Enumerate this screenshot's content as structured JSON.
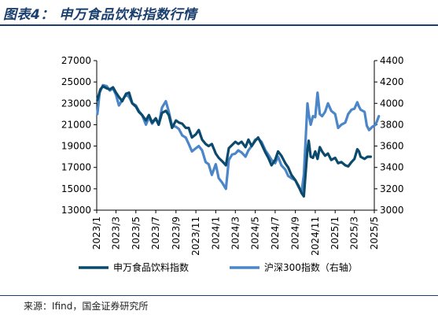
{
  "header": {
    "title": "图表4：  申万食品饮料指数行情"
  },
  "source": "来源：Ifind，国金证券研究所",
  "colors": {
    "primary": "#1a3f6e",
    "series1": "#0b4a6c",
    "series2": "#4a86c8",
    "axis": "#000000"
  },
  "chart_data": {
    "type": "line",
    "title": "",
    "xlabel": "",
    "ylabel": "",
    "x_start": "2023-01",
    "x_end": "2025-05",
    "x_tick_labels": [
      "2023/1",
      "2023/3",
      "2023/5",
      "2023/7",
      "2023/9",
      "2023/11",
      "2024/1",
      "2024/3",
      "2024/5",
      "2024/7",
      "2024/9",
      "2024/11",
      "2025/1",
      "2025/3",
      "2025/5"
    ],
    "ylim_left": [
      13000,
      27000
    ],
    "yticks_left": [
      13000,
      15000,
      17000,
      19000,
      21000,
      23000,
      25000,
      27000
    ],
    "ylim_right": [
      3000,
      4400
    ],
    "yticks_right": [
      3000,
      3200,
      3400,
      3600,
      3800,
      4000,
      4200,
      4400
    ],
    "legend_position": "bottom",
    "series": [
      {
        "name": "申万食品饮料指数",
        "axis": "left",
        "points": [
          [
            "2023-01-03",
            23300
          ],
          [
            "2023-01-12",
            24300
          ],
          [
            "2023-01-20",
            24600
          ],
          [
            "2023-02-01",
            24400
          ],
          [
            "2023-02-10",
            24300
          ],
          [
            "2023-02-20",
            24500
          ],
          [
            "2023-03-01",
            24000
          ],
          [
            "2023-03-10",
            23600
          ],
          [
            "2023-03-20",
            23200
          ],
          [
            "2023-04-01",
            23900
          ],
          [
            "2023-04-10",
            24000
          ],
          [
            "2023-04-20",
            23000
          ],
          [
            "2023-05-01",
            22700
          ],
          [
            "2023-05-10",
            22200
          ],
          [
            "2023-05-20",
            21900
          ],
          [
            "2023-06-01",
            21400
          ],
          [
            "2023-06-10",
            21900
          ],
          [
            "2023-06-20",
            21200
          ],
          [
            "2023-07-01",
            21600
          ],
          [
            "2023-07-10",
            21000
          ],
          [
            "2023-07-20",
            22100
          ],
          [
            "2023-08-01",
            22300
          ],
          [
            "2023-08-10",
            21900
          ],
          [
            "2023-08-20",
            20700
          ],
          [
            "2023-09-01",
            21400
          ],
          [
            "2023-09-10",
            21200
          ],
          [
            "2023-09-20",
            21100
          ],
          [
            "2023-10-01",
            20700
          ],
          [
            "2023-10-10",
            20700
          ],
          [
            "2023-10-20",
            19800
          ],
          [
            "2023-11-01",
            20100
          ],
          [
            "2023-11-10",
            20500
          ],
          [
            "2023-11-20",
            19600
          ],
          [
            "2023-12-01",
            19200
          ],
          [
            "2023-12-10",
            19000
          ],
          [
            "2023-12-20",
            19200
          ],
          [
            "2024-01-01",
            18300
          ],
          [
            "2024-01-10",
            17900
          ],
          [
            "2024-01-20",
            17600
          ],
          [
            "2024-02-01",
            17200
          ],
          [
            "2024-02-10",
            18800
          ],
          [
            "2024-02-20",
            19100
          ],
          [
            "2024-03-01",
            19400
          ],
          [
            "2024-03-10",
            19200
          ],
          [
            "2024-03-20",
            19400
          ],
          [
            "2024-04-01",
            18900
          ],
          [
            "2024-04-10",
            19600
          ],
          [
            "2024-04-20",
            19000
          ],
          [
            "2024-05-01",
            19500
          ],
          [
            "2024-05-10",
            19800
          ],
          [
            "2024-05-20",
            19200
          ],
          [
            "2024-06-01",
            18400
          ],
          [
            "2024-06-10",
            17900
          ],
          [
            "2024-06-20",
            17200
          ],
          [
            "2024-07-01",
            17700
          ],
          [
            "2024-07-10",
            18500
          ],
          [
            "2024-07-20",
            18100
          ],
          [
            "2024-08-01",
            17400
          ],
          [
            "2024-08-10",
            17000
          ],
          [
            "2024-08-20",
            16300
          ],
          [
            "2024-09-01",
            15800
          ],
          [
            "2024-09-10",
            15300
          ],
          [
            "2024-09-20",
            14600
          ],
          [
            "2024-09-27",
            14300
          ],
          [
            "2024-10-08",
            18700
          ],
          [
            "2024-10-12",
            19500
          ],
          [
            "2024-10-18",
            18000
          ],
          [
            "2024-10-25",
            17900
          ],
          [
            "2024-11-01",
            18500
          ],
          [
            "2024-11-08",
            17800
          ],
          [
            "2024-11-15",
            18900
          ],
          [
            "2024-11-22",
            18500
          ],
          [
            "2024-12-01",
            18100
          ],
          [
            "2024-12-10",
            18300
          ],
          [
            "2024-12-20",
            17700
          ],
          [
            "2025-01-01",
            17900
          ],
          [
            "2025-01-10",
            17400
          ],
          [
            "2025-01-20",
            17500
          ],
          [
            "2025-02-01",
            17200
          ],
          [
            "2025-02-10",
            17100
          ],
          [
            "2025-02-20",
            17500
          ],
          [
            "2025-03-01",
            17800
          ],
          [
            "2025-03-10",
            18700
          ],
          [
            "2025-03-15",
            18500
          ],
          [
            "2025-03-20",
            18000
          ],
          [
            "2025-04-01",
            17800
          ],
          [
            "2025-04-10",
            18000
          ],
          [
            "2025-04-20",
            18000
          ]
        ]
      },
      {
        "name": "沪深300指数（右轴）",
        "axis": "right",
        "points": [
          [
            "2023-01-03",
            3900
          ],
          [
            "2023-01-10",
            4100
          ],
          [
            "2023-01-20",
            4170
          ],
          [
            "2023-02-01",
            4160
          ],
          [
            "2023-02-10",
            4120
          ],
          [
            "2023-02-20",
            4140
          ],
          [
            "2023-03-01",
            4080
          ],
          [
            "2023-03-10",
            3980
          ],
          [
            "2023-03-20",
            4030
          ],
          [
            "2023-04-01",
            4080
          ],
          [
            "2023-04-10",
            4060
          ],
          [
            "2023-04-20",
            4000
          ],
          [
            "2023-05-01",
            3980
          ],
          [
            "2023-05-10",
            3930
          ],
          [
            "2023-05-20",
            3890
          ],
          [
            "2023-06-01",
            3800
          ],
          [
            "2023-06-10",
            3870
          ],
          [
            "2023-06-20",
            3810
          ],
          [
            "2023-07-01",
            3860
          ],
          [
            "2023-07-10",
            3800
          ],
          [
            "2023-07-20",
            3960
          ],
          [
            "2023-08-01",
            4020
          ],
          [
            "2023-08-10",
            3920
          ],
          [
            "2023-08-20",
            3790
          ],
          [
            "2023-09-01",
            3780
          ],
          [
            "2023-09-10",
            3760
          ],
          [
            "2023-09-20",
            3700
          ],
          [
            "2023-10-01",
            3680
          ],
          [
            "2023-10-10",
            3620
          ],
          [
            "2023-10-20",
            3550
          ],
          [
            "2023-11-01",
            3580
          ],
          [
            "2023-11-10",
            3600
          ],
          [
            "2023-11-20",
            3560
          ],
          [
            "2023-12-01",
            3450
          ],
          [
            "2023-12-10",
            3430
          ],
          [
            "2023-12-20",
            3330
          ],
          [
            "2024-01-01",
            3430
          ],
          [
            "2024-01-10",
            3300
          ],
          [
            "2024-01-20",
            3260
          ],
          [
            "2024-02-01",
            3200
          ],
          [
            "2024-02-10",
            3470
          ],
          [
            "2024-02-20",
            3520
          ],
          [
            "2024-03-01",
            3530
          ],
          [
            "2024-03-10",
            3560
          ],
          [
            "2024-03-20",
            3540
          ],
          [
            "2024-04-01",
            3500
          ],
          [
            "2024-04-10",
            3560
          ],
          [
            "2024-04-20",
            3600
          ],
          [
            "2024-05-01",
            3660
          ],
          [
            "2024-05-10",
            3670
          ],
          [
            "2024-05-20",
            3640
          ],
          [
            "2024-06-01",
            3560
          ],
          [
            "2024-06-10",
            3520
          ],
          [
            "2024-06-20",
            3470
          ],
          [
            "2024-07-01",
            3440
          ],
          [
            "2024-07-10",
            3500
          ],
          [
            "2024-07-20",
            3420
          ],
          [
            "2024-08-01",
            3380
          ],
          [
            "2024-08-10",
            3320
          ],
          [
            "2024-08-20",
            3300
          ],
          [
            "2024-09-01",
            3280
          ],
          [
            "2024-09-10",
            3220
          ],
          [
            "2024-09-20",
            3170
          ],
          [
            "2024-09-27",
            3330
          ],
          [
            "2024-10-08",
            4000
          ],
          [
            "2024-10-12",
            3900
          ],
          [
            "2024-10-18",
            3800
          ],
          [
            "2024-10-25",
            3880
          ],
          [
            "2024-11-01",
            3870
          ],
          [
            "2024-11-08",
            4100
          ],
          [
            "2024-11-15",
            3900
          ],
          [
            "2024-11-22",
            3880
          ],
          [
            "2024-12-01",
            3920
          ],
          [
            "2024-12-10",
            4000
          ],
          [
            "2024-12-20",
            3930
          ],
          [
            "2025-01-01",
            3900
          ],
          [
            "2025-01-10",
            3770
          ],
          [
            "2025-01-20",
            3800
          ],
          [
            "2025-02-01",
            3820
          ],
          [
            "2025-02-10",
            3900
          ],
          [
            "2025-02-20",
            3940
          ],
          [
            "2025-03-01",
            3950
          ],
          [
            "2025-03-10",
            4010
          ],
          [
            "2025-03-15",
            3970
          ],
          [
            "2025-03-20",
            3940
          ],
          [
            "2025-04-01",
            3920
          ],
          [
            "2025-04-08",
            3790
          ],
          [
            "2025-04-15",
            3750
          ],
          [
            "2025-04-25",
            3780
          ],
          [
            "2025-05-05",
            3800
          ],
          [
            "2025-05-15",
            3880
          ]
        ]
      }
    ]
  }
}
